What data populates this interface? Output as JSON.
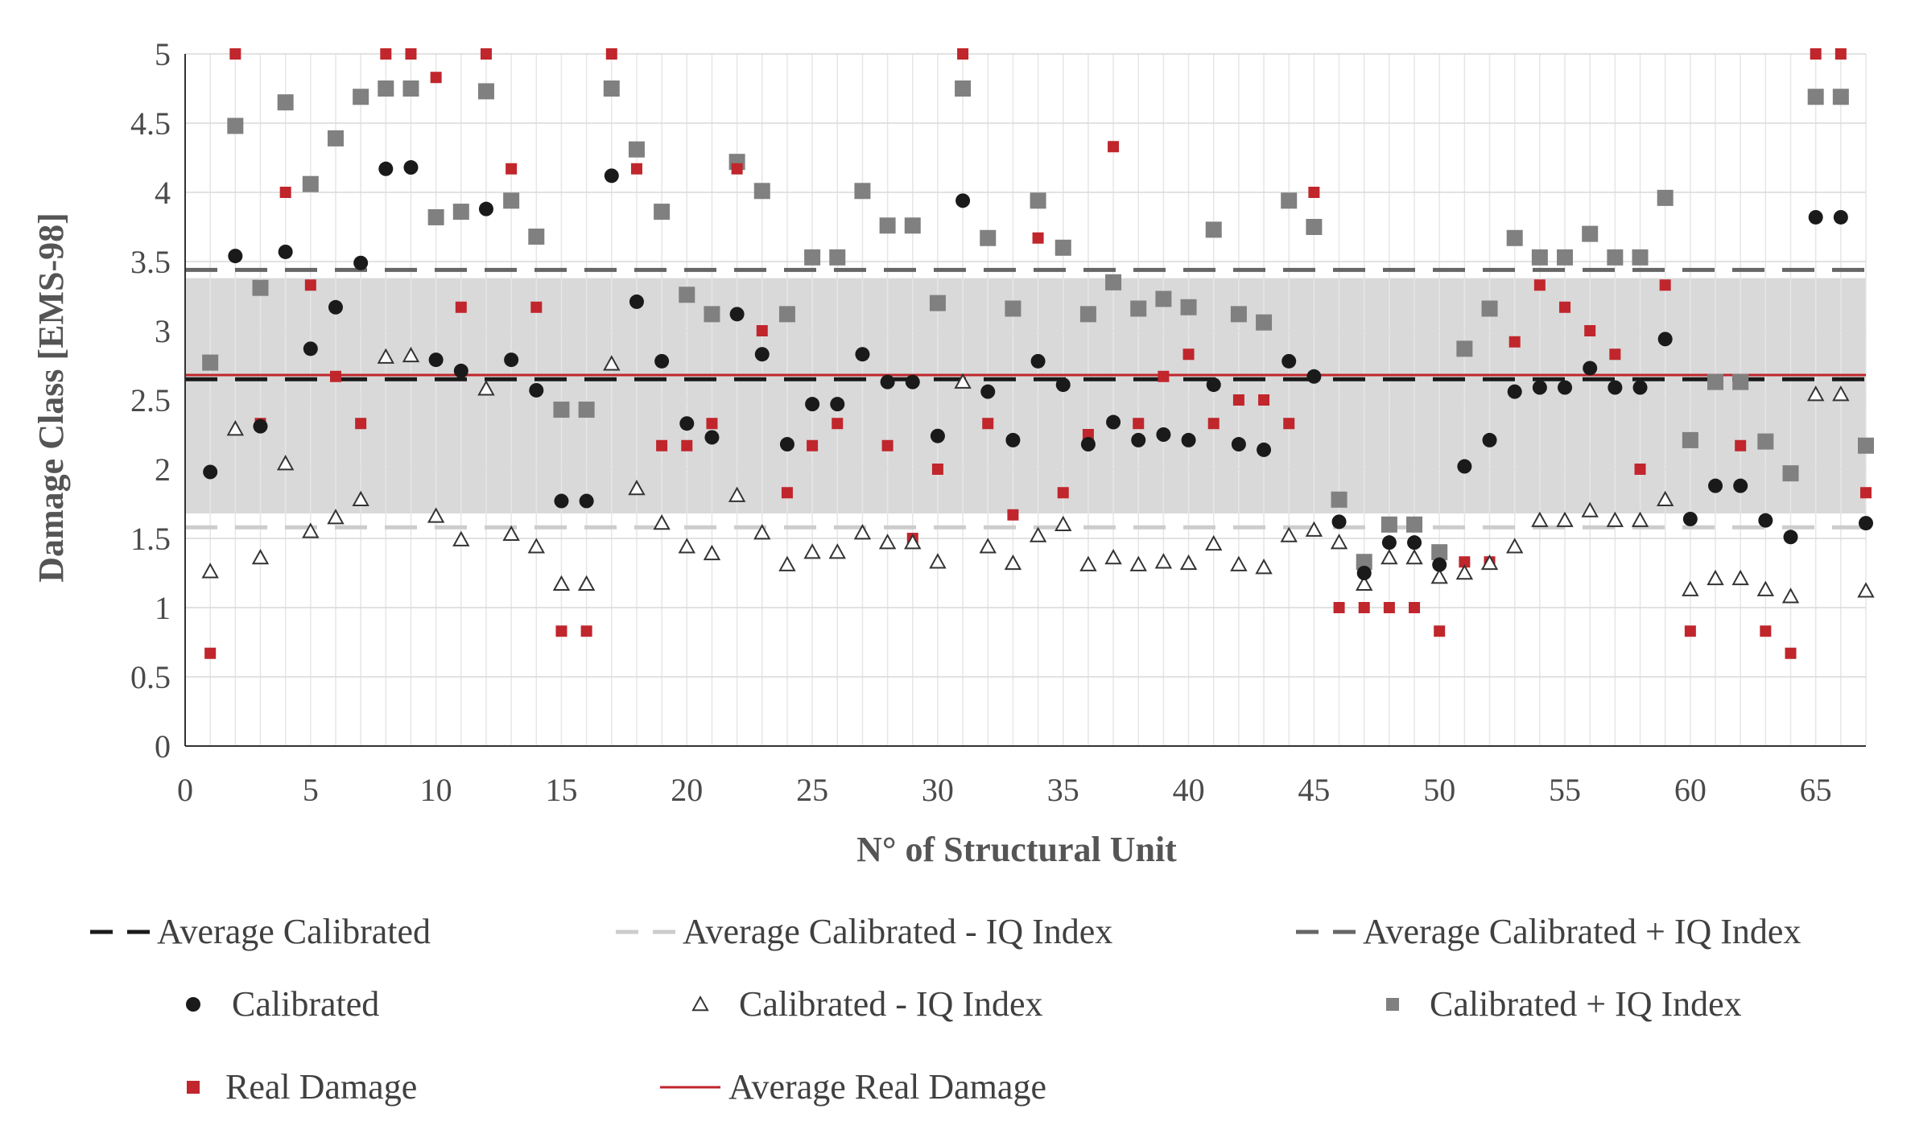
{
  "chart_data": {
    "type": "scatter",
    "title": "",
    "xlabel": "N° of Structural Unit",
    "ylabel": "Damage Class  [EMS-98]",
    "xlim": [
      0,
      67
    ],
    "ylim": [
      0,
      5
    ],
    "x_ticks": [
      0,
      5,
      10,
      15,
      20,
      25,
      30,
      35,
      40,
      45,
      50,
      55,
      60,
      65
    ],
    "x_tick_labels": [
      "0",
      "5",
      "10",
      "15",
      "20",
      "25",
      "30",
      "35",
      "40",
      "45",
      "50",
      "55",
      "60",
      "65"
    ],
    "y_ticks": [
      0,
      0.5,
      1,
      1.5,
      2,
      2.5,
      3,
      3.5,
      4,
      4.5,
      5
    ],
    "y_tick_labels": [
      "0",
      "0.5",
      "1",
      "1.5",
      "2",
      "2.5",
      "3",
      "3.5",
      "4",
      "4.5",
      "5"
    ],
    "grid": true,
    "shaded_band": {
      "y_from": 1.68,
      "y_to": 3.38,
      "color": "#d9d9d9"
    },
    "reference_lines": [
      {
        "name": "Average Calibrated",
        "y": 2.65,
        "color": "#1a1a1a",
        "style": "dashed"
      },
      {
        "name": "Average Calibrated - IQ Index",
        "y": 1.58,
        "color": "#cccccc",
        "style": "dashed"
      },
      {
        "name": "Average Calibrated + IQ Index",
        "y": 3.44,
        "color": "#666666",
        "style": "dashed"
      },
      {
        "name": "Average Real Damage",
        "y": 2.68,
        "color": "#c0262c",
        "style": "solid"
      }
    ],
    "series": [
      {
        "name": "Calibrated",
        "marker": "circle",
        "color": "#1a1a1a",
        "values": [
          1.98,
          3.54,
          2.31,
          3.57,
          2.87,
          3.17,
          3.49,
          4.17,
          4.18,
          2.79,
          2.71,
          3.88,
          2.79,
          2.57,
          1.77,
          1.77,
          4.12,
          3.21,
          2.78,
          2.33,
          2.23,
          3.12,
          2.83,
          2.18,
          2.47,
          2.47,
          2.83,
          2.63,
          2.63,
          2.24,
          3.94,
          2.56,
          2.21,
          2.78,
          2.61,
          2.18,
          2.34,
          2.21,
          2.25,
          2.21,
          2.61,
          2.18,
          2.14,
          2.78,
          2.67,
          1.62,
          1.25,
          1.47,
          1.47,
          1.31,
          2.02,
          2.21,
          2.56,
          2.59,
          2.59,
          2.73,
          2.59,
          2.59,
          2.94,
          1.64,
          1.88,
          1.88,
          1.63,
          1.51,
          3.82,
          3.82,
          1.61
        ]
      },
      {
        "name": "Calibrated - IQ Index",
        "marker": "triangle",
        "color": "#333333",
        "values": [
          1.26,
          2.29,
          1.36,
          2.04,
          1.55,
          1.65,
          1.78,
          2.81,
          2.82,
          1.66,
          1.49,
          2.58,
          1.53,
          1.44,
          1.17,
          1.17,
          2.76,
          1.86,
          1.61,
          1.44,
          1.39,
          1.81,
          1.54,
          1.31,
          1.4,
          1.4,
          1.54,
          1.47,
          1.47,
          1.33,
          2.63,
          1.44,
          1.32,
          1.52,
          1.6,
          1.31,
          1.36,
          1.31,
          1.33,
          1.32,
          1.46,
          1.31,
          1.29,
          1.52,
          1.56,
          1.47,
          1.17,
          1.36,
          1.36,
          1.22,
          1.25,
          1.32,
          1.44,
          1.63,
          1.63,
          1.7,
          1.63,
          1.63,
          1.78,
          1.13,
          1.21,
          1.21,
          1.13,
          1.08,
          2.54,
          2.54,
          1.12
        ]
      },
      {
        "name": "Calibrated + IQ Index",
        "marker": "square",
        "color": "#808080",
        "values": [
          2.77,
          4.48,
          3.31,
          4.65,
          4.06,
          4.39,
          4.69,
          4.75,
          4.75,
          3.82,
          3.86,
          4.73,
          3.94,
          3.68,
          2.43,
          2.43,
          4.75,
          4.31,
          3.86,
          3.26,
          3.12,
          4.22,
          4.01,
          3.12,
          3.53,
          3.53,
          4.01,
          3.76,
          3.76,
          3.2,
          4.75,
          3.67,
          3.16,
          3.94,
          3.6,
          3.12,
          3.35,
          3.16,
          3.23,
          3.17,
          3.73,
          3.12,
          3.06,
          3.94,
          3.75,
          1.78,
          1.33,
          1.6,
          1.6,
          1.4,
          2.87,
          3.16,
          3.67,
          3.53,
          3.53,
          3.7,
          3.53,
          3.53,
          3.96,
          2.21,
          2.63,
          2.63,
          2.2,
          1.97,
          4.69,
          4.69,
          2.17
        ]
      },
      {
        "name": "Real Damage",
        "marker": "square",
        "color": "#c0262c",
        "values": [
          0.67,
          5.0,
          2.33,
          4.0,
          3.33,
          2.67,
          2.33,
          5.0,
          5.0,
          4.83,
          3.17,
          5.0,
          4.17,
          3.17,
          0.83,
          0.83,
          5.0,
          4.17,
          2.17,
          2.17,
          2.33,
          4.17,
          3.0,
          1.83,
          2.17,
          2.33,
          null,
          2.17,
          1.5,
          2.0,
          5.0,
          2.33,
          1.67,
          3.67,
          1.83,
          2.25,
          4.33,
          2.33,
          2.67,
          2.83,
          2.33,
          2.5,
          2.5,
          2.33,
          4.0,
          1.0,
          1.0,
          1.0,
          1.0,
          0.83,
          1.33,
          1.33,
          2.92,
          3.33,
          3.17,
          3.0,
          2.83,
          2.0,
          3.33,
          0.83,
          null,
          2.17,
          0.83,
          0.67,
          5.0,
          5.0,
          1.83
        ]
      }
    ],
    "legend": {
      "placement": "bottom",
      "entries": [
        {
          "label": "Average Calibrated",
          "symbol": "dashed-line",
          "color": "#1a1a1a"
        },
        {
          "label": "Average Calibrated - IQ Index",
          "symbol": "dashed-line",
          "color": "#cccccc"
        },
        {
          "label": "Average Calibrated + IQ Index",
          "symbol": "dashed-line",
          "color": "#666666"
        },
        {
          "label": "Calibrated",
          "symbol": "circle",
          "color": "#1a1a1a"
        },
        {
          "label": "Calibrated - IQ Index",
          "symbol": "triangle",
          "color": "#333333"
        },
        {
          "label": "Calibrated + IQ Index",
          "symbol": "square",
          "color": "#808080"
        },
        {
          "label": "Real Damage",
          "symbol": "square",
          "color": "#c0262c"
        },
        {
          "label": "Average Real Damage",
          "symbol": "solid-line",
          "color": "#c0262c"
        }
      ]
    }
  }
}
